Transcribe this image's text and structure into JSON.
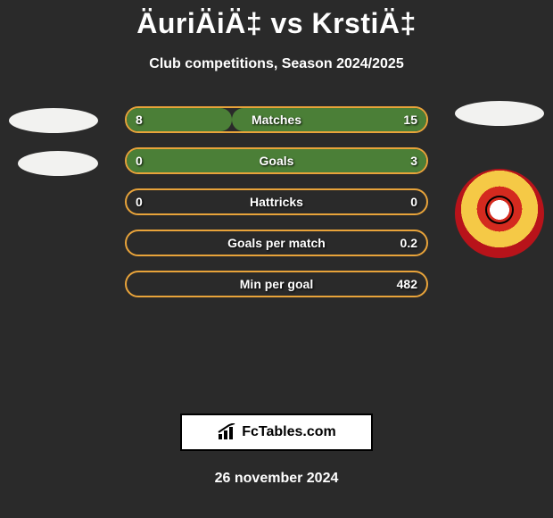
{
  "title": "ÄuriÄiÄ‡ vs KrstiÄ‡",
  "subtitle": "Club competitions, Season 2024/2025",
  "date": "26 november 2024",
  "site": "FcTables.com",
  "colors": {
    "border": "#e8a33a",
    "fill_left": "#4b7f37",
    "fill_right": "#4b7f37",
    "track": "transparent"
  },
  "bars": [
    {
      "label": "Matches",
      "left": "8",
      "right": "15",
      "fl": 35,
      "fr": 65
    },
    {
      "label": "Goals",
      "left": "0",
      "right": "3",
      "fl": 0,
      "fr": 100
    },
    {
      "label": "Hattricks",
      "left": "0",
      "right": "0",
      "fl": 0,
      "fr": 0
    },
    {
      "label": "Goals per match",
      "left": "",
      "right": "0.2",
      "fl": 0,
      "fr": 0
    },
    {
      "label": "Min per goal",
      "left": "",
      "right": "482",
      "fl": 0,
      "fr": 0
    }
  ]
}
